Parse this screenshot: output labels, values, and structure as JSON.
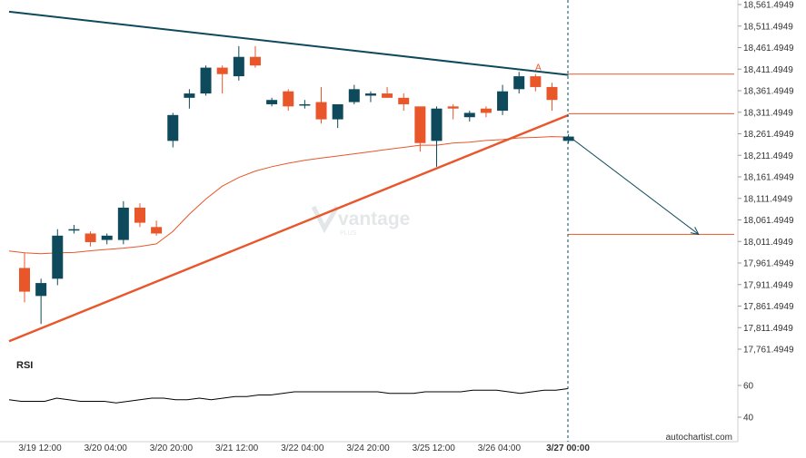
{
  "chart_data": {
    "type": "candlestick",
    "price_axis": {
      "ticks": [
        "18,561.4949",
        "18,511.4949",
        "18,461.4949",
        "18,411.4949",
        "18,361.4949",
        "18,311.4949",
        "18,261.4949",
        "18,211.4949",
        "18,161.4949",
        "18,111.4949",
        "18,061.4949",
        "18,011.4949",
        "17,961.4949",
        "17,911.4949",
        "17,861.4949",
        "17,811.4949",
        "17,761.4949"
      ],
      "ylim": [
        17725,
        18570
      ]
    },
    "time_axis": {
      "ticks": [
        "3/19 12:00",
        "3/20 04:00",
        "3/20 20:00",
        "3/21 12:00",
        "3/22 04:00",
        "3/24 20:00",
        "3/25 12:00",
        "3/26 04:00",
        "3/27 00:00"
      ],
      "highlight": "3/27 00:00"
    },
    "candles": [
      {
        "o": 17950,
        "h": 17985,
        "l": 17870,
        "c": 17895
      },
      {
        "o": 17885,
        "h": 17925,
        "l": 17820,
        "c": 17915
      },
      {
        "o": 17925,
        "h": 18040,
        "l": 17910,
        "c": 18025
      },
      {
        "o": 18040,
        "h": 18050,
        "l": 18030,
        "c": 18040
      },
      {
        "o": 18030,
        "h": 18035,
        "l": 18000,
        "c": 18010
      },
      {
        "o": 18015,
        "h": 18030,
        "l": 18005,
        "c": 18025
      },
      {
        "o": 18015,
        "h": 18105,
        "l": 18005,
        "c": 18090
      },
      {
        "o": 18090,
        "h": 18100,
        "l": 18045,
        "c": 18055
      },
      {
        "o": 18045,
        "h": 18060,
        "l": 18025,
        "c": 18030
      },
      {
        "o": 18245,
        "h": 18310,
        "l": 18230,
        "c": 18305
      },
      {
        "o": 18345,
        "h": 18365,
        "l": 18320,
        "c": 18355
      },
      {
        "o": 18355,
        "h": 18420,
        "l": 18350,
        "c": 18415
      },
      {
        "o": 18415,
        "h": 18420,
        "l": 18355,
        "c": 18400
      },
      {
        "o": 18395,
        "h": 18465,
        "l": 18385,
        "c": 18440
      },
      {
        "o": 18440,
        "h": 18465,
        "l": 18415,
        "c": 18420
      },
      {
        "o": 18330,
        "h": 18345,
        "l": 18325,
        "c": 18340
      },
      {
        "o": 18360,
        "h": 18365,
        "l": 18315,
        "c": 18325
      },
      {
        "o": 18330,
        "h": 18340,
        "l": 18320,
        "c": 18330
      },
      {
        "o": 18335,
        "h": 18370,
        "l": 18285,
        "c": 18295
      },
      {
        "o": 18295,
        "h": 18330,
        "l": 18275,
        "c": 18330
      },
      {
        "o": 18335,
        "h": 18375,
        "l": 18330,
        "c": 18365
      },
      {
        "o": 18350,
        "h": 18360,
        "l": 18335,
        "c": 18355
      },
      {
        "o": 18355,
        "h": 18370,
        "l": 18345,
        "c": 18345
      },
      {
        "o": 18345,
        "h": 18355,
        "l": 18315,
        "c": 18330
      },
      {
        "o": 18325,
        "h": 18320,
        "l": 18220,
        "c": 18240
      },
      {
        "o": 18245,
        "h": 18325,
        "l": 18185,
        "c": 18320
      },
      {
        "o": 18325,
        "h": 18330,
        "l": 18295,
        "c": 18320
      },
      {
        "o": 18300,
        "h": 18315,
        "l": 18290,
        "c": 18310
      },
      {
        "o": 18320,
        "h": 18325,
        "l": 18300,
        "c": 18310
      },
      {
        "o": 18315,
        "h": 18375,
        "l": 18305,
        "c": 18360
      },
      {
        "o": 18365,
        "h": 18405,
        "l": 18355,
        "c": 18395
      },
      {
        "o": 18395,
        "h": 18400,
        "l": 18360,
        "c": 18370
      },
      {
        "o": 18370,
        "h": 18380,
        "l": 18315,
        "c": 18340
      },
      {
        "o": 18245,
        "h": 18260,
        "l": 18240,
        "c": 18255
      }
    ],
    "moving_average": [
      17985,
      17983,
      17985,
      17986,
      17990,
      17993,
      17996,
      18000,
      18006,
      18035,
      18075,
      18110,
      18140,
      18160,
      18175,
      18185,
      18193,
      18200,
      18205,
      18210,
      18215,
      18220,
      18225,
      18230,
      18235,
      18235,
      18240,
      18242,
      18246,
      18248,
      18252,
      18253,
      18255,
      18254
    ],
    "patterns": {
      "resistance_line": {
        "from": {
          "candle": -1,
          "price": 18545
        },
        "to": {
          "candle": 33,
          "price": 18398
        }
      },
      "support_line": {
        "from": {
          "candle": -1,
          "price": 17780
        },
        "to": {
          "candle": 33,
          "price": 18305
        }
      },
      "level_lines": [
        18400,
        18308
      ],
      "target_price": 18028,
      "forecast_arrow": {
        "from": {
          "candle": 33,
          "price": 18250
        },
        "to": {
          "candle": 41,
          "price": 18028
        }
      }
    },
    "annotation": "A",
    "colors": {
      "bull": "#0e4a5c",
      "bear": "#e8562a",
      "pattern": "#e8562a",
      "resistance": "#0e4a5c",
      "ma": "#e8562a",
      "rsi": "#000000",
      "arrow": "#0e4a5c"
    }
  },
  "rsi": {
    "label": "RSI",
    "ticks": [
      "60",
      "40"
    ],
    "ylim": [
      32,
      68
    ],
    "values": [
      51,
      50,
      50,
      50,
      52,
      51,
      50,
      50,
      50,
      49,
      50,
      51,
      52,
      52,
      51,
      51,
      52,
      51,
      52,
      53,
      53,
      54,
      54,
      55,
      56,
      56,
      56,
      56,
      56,
      56,
      56,
      56,
      55,
      55,
      55,
      56,
      56,
      56,
      56,
      57,
      57,
      57,
      56,
      55,
      56,
      57,
      57,
      58
    ]
  },
  "watermark": {
    "brand": "vantage",
    "sub": "PLUS"
  },
  "footer": "autochartist.com"
}
